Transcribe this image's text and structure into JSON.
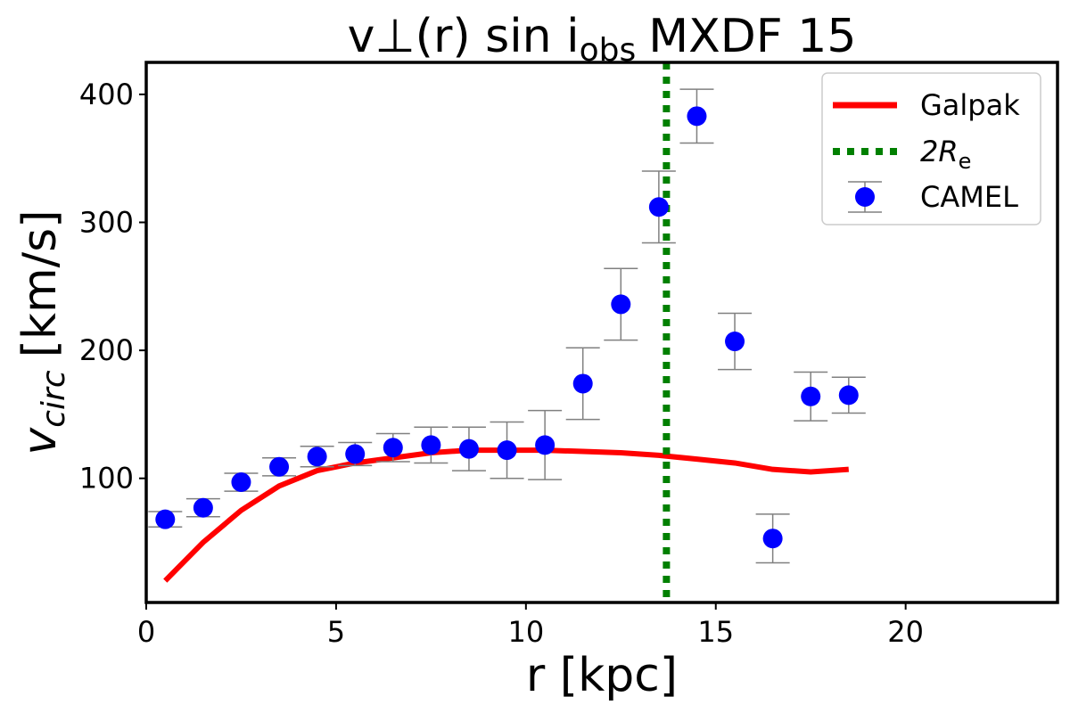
{
  "chart_data": {
    "type": "scatter",
    "title": "v⊥(r) sin i",
    "title_subscript": "obs",
    "title_suffix": "MXDF 15",
    "xlabel": "r [kpc]",
    "ylabel": "v",
    "ylabel_subscript": "circ",
    "ylabel_suffix": "[km/s]",
    "xlim": [
      0,
      24
    ],
    "ylim": [
      3,
      425
    ],
    "xticks": [
      0,
      5,
      10,
      15,
      20
    ],
    "yticks": [
      100,
      200,
      300,
      400
    ],
    "grid": false,
    "legend_position": "top-right",
    "series": [
      {
        "name": "Galpak",
        "kind": "line",
        "color": "#ff0000",
        "x": [
          0.5,
          1.5,
          2.5,
          3.5,
          4.5,
          5.5,
          6.5,
          7.5,
          8.5,
          9.5,
          10.5,
          11.5,
          12.5,
          13.5,
          14.5,
          15.5,
          16.5,
          17.5,
          18.5
        ],
        "y": [
          20,
          50,
          75,
          94,
          106,
          112,
          116,
          120,
          122,
          122,
          122,
          121,
          120,
          118,
          115,
          112,
          107,
          105,
          107
        ]
      },
      {
        "name": "2R",
        "name_subscript": "e",
        "kind": "vline",
        "color": "#008000",
        "x": 13.7
      },
      {
        "name": "CAMEL",
        "kind": "errorbar",
        "color": "#0000ff",
        "errcolor": "#808080",
        "x": [
          0.5,
          1.5,
          2.5,
          3.5,
          4.5,
          5.5,
          6.5,
          7.5,
          8.5,
          9.5,
          10.5,
          11.5,
          12.5,
          13.5,
          14.5,
          15.5,
          16.5,
          17.5,
          18.5
        ],
        "y": [
          68,
          77,
          97,
          109,
          117,
          119,
          124,
          126,
          123,
          122,
          126,
          174,
          236,
          312,
          383,
          207,
          53,
          164,
          165
        ],
        "yerr": [
          6,
          7,
          7,
          7,
          8,
          9,
          11,
          14,
          17,
          22,
          27,
          28,
          28,
          28,
          21,
          22,
          19,
          19,
          14
        ]
      }
    ]
  }
}
